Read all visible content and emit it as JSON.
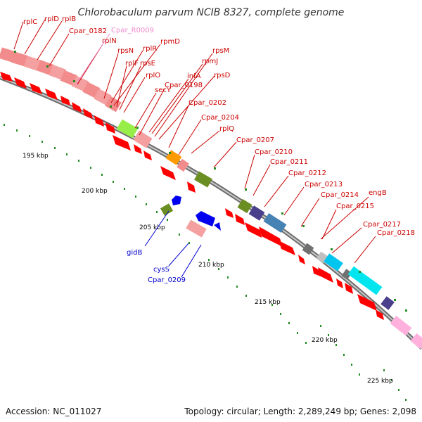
{
  "title": "Chlorobaculum parvum NCIB 8327, complete genome",
  "footer": {
    "accession": "Accession: NC_011027",
    "summary": "Topology: circular; Length: 2,289,249 bp; Genes: 2,098"
  },
  "colors": {
    "backbone": "#8a8a8a",
    "forward_cds": "#ff0000",
    "rna_pink": "#f4a0a0",
    "trna_pink": "#ff9bd2",
    "label_red": "#cc0000",
    "label_blue": "#0000cc",
    "label_pink": "#ee88cc",
    "tick_green": "#228b22",
    "olive": "#6b8e23",
    "slate": "#4a3f8a",
    "steel": "#4682b4",
    "cyan": "#00e5ee",
    "lime": "#98ee48",
    "orange": "#ff9a00",
    "gray": "#707070",
    "blue": "#0000ee"
  },
  "kbp_labels": [
    "195 kbp",
    "200 kbp",
    "205 kbp",
    "210 kbp",
    "215 kbp",
    "220 kbp",
    "225 kbp"
  ],
  "gene_labels_red": [
    "rplC",
    "rplD",
    "rplB",
    "Cpar_0182",
    "rplN",
    "rpsN",
    "rplR",
    "rpmD",
    "rplF",
    "rpsE",
    "rplO",
    "secY",
    "infA",
    "rpmJ",
    "rpsM",
    "rpsD",
    "Cpar_0198",
    "Cpar_0202",
    "Cpar_0204",
    "rplQ",
    "Cpar_0207",
    "Cpar_0210",
    "Cpar_0211",
    "Cpar_0212",
    "Cpar_0213",
    "Cpar_0214",
    "engB",
    "Cpar_0215",
    "Cpar_0217",
    "Cpar_0218"
  ],
  "gene_labels_pink": [
    "Cpar_R0009"
  ],
  "gene_labels_blue": [
    "gidB",
    "cysS",
    "Cpar_0209"
  ]
}
